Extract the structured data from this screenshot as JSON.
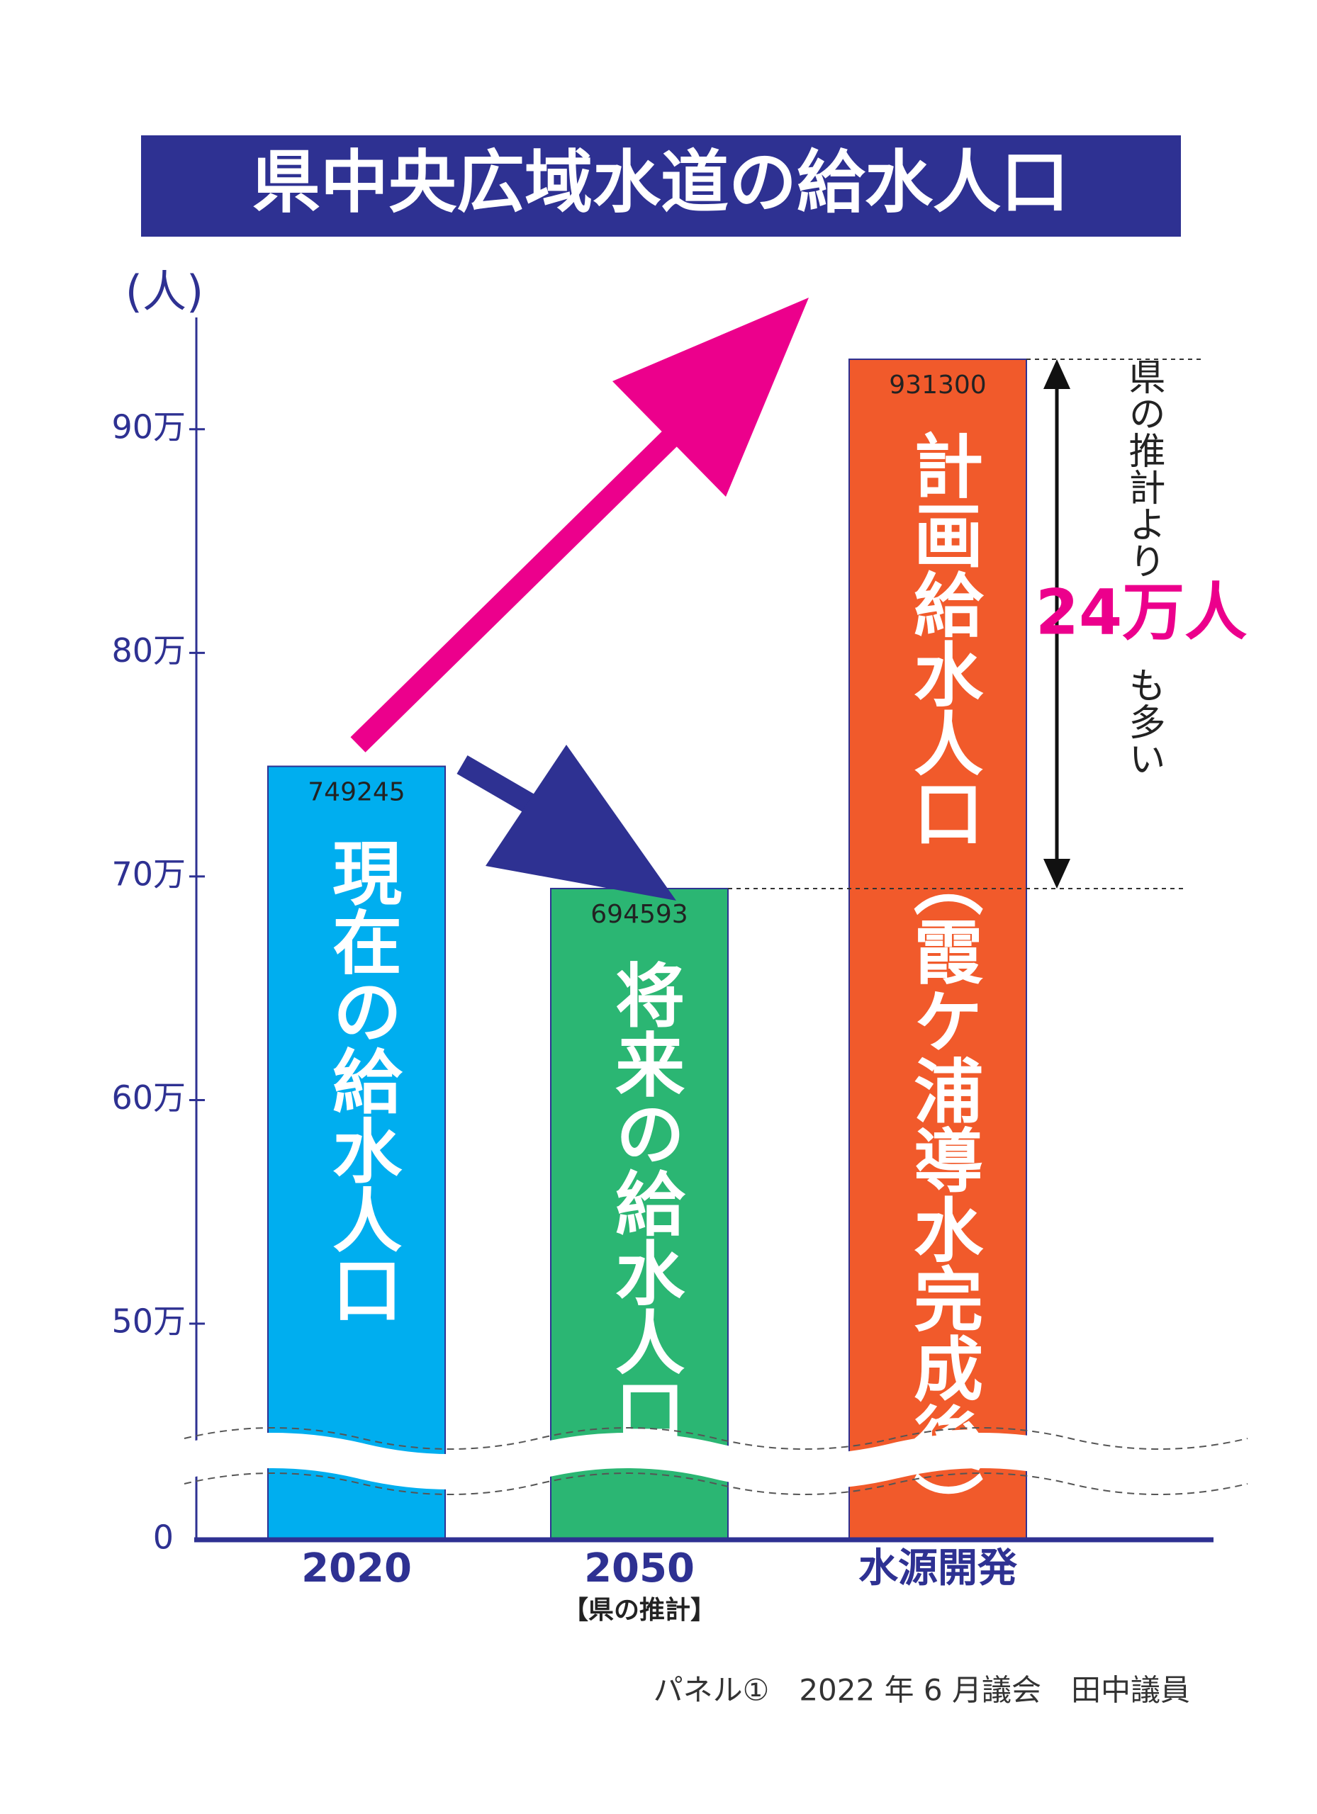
{
  "chart_data": {
    "type": "bar",
    "title": "県中央広域水道の給水人口",
    "y_label": "(人)",
    "categories": [
      "2020",
      "2050",
      "水源開発"
    ],
    "category_notes": [
      null,
      "【県の推計】",
      null
    ],
    "values": [
      749245,
      694593,
      931300
    ],
    "colors": [
      "#00aeef",
      "#2bb673",
      "#f15a2b"
    ],
    "bar_labels": [
      "現在の給水人口",
      "将来の給水人口",
      "計画給水人口（霞ケ浦導水完成後）"
    ],
    "ylim": [
      0,
      950000
    ],
    "yticks": [
      0,
      {
        "value": 500000,
        "label": "50万"
      },
      {
        "value": 600000,
        "label": "60万"
      },
      {
        "value": 700000,
        "label": "70万"
      },
      {
        "value": 800000,
        "label": "80万"
      },
      {
        "value": 900000,
        "label": "90万"
      }
    ],
    "y_break": true,
    "difference_note": [
      "県の推計より",
      "24万人",
      "も多い"
    ],
    "footer": "パネル①　2022 年 6 月議会　田中議員"
  }
}
